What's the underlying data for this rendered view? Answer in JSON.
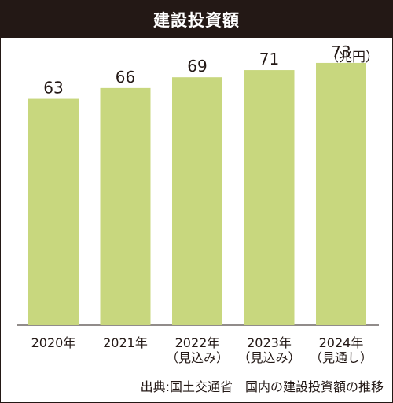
{
  "title": "建設投資額",
  "source_note": "出典:国土交通省　国内の建設投資額の推移",
  "colors": {
    "bar": "#c8d77e",
    "header_bg": "#231815",
    "text": "#231815",
    "axis": "#231815"
  },
  "chart_data": {
    "type": "bar",
    "title": "建設投資額",
    "unit_label": "（兆円）",
    "categories": [
      [
        "2020年"
      ],
      [
        "2021年"
      ],
      [
        "2022年",
        "（見込み）"
      ],
      [
        "2023年",
        "（見込み）"
      ],
      [
        "2024年",
        "（見通し）"
      ]
    ],
    "values": [
      63,
      66,
      69,
      71,
      73
    ],
    "data_labels": [
      "63",
      "66",
      "69",
      "71",
      "73"
    ],
    "ylim": [
      0,
      80
    ],
    "grid": false,
    "legend": "none"
  }
}
